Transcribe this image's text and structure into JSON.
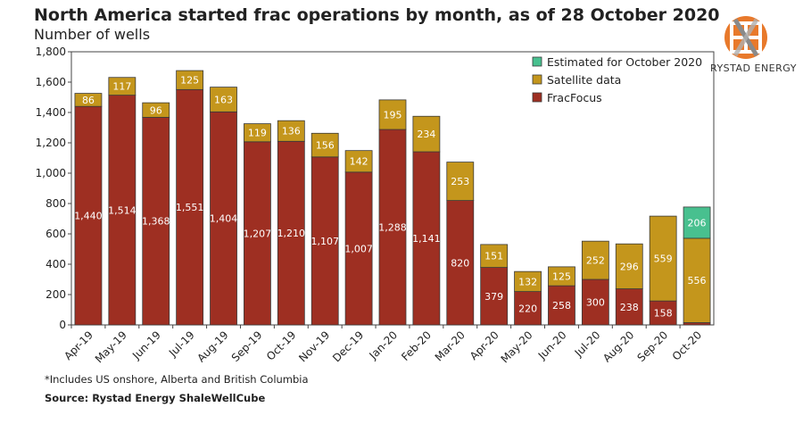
{
  "chart_data": {
    "type": "bar",
    "stacked": true,
    "title": "North America started frac operations by month, as of 28 October 2020",
    "subtitle": "Number of wells",
    "xlabel": "",
    "ylabel": "Number of wells",
    "ylim": [
      0,
      1800
    ],
    "yticks": [
      0,
      200,
      400,
      600,
      800,
      1000,
      1200,
      1400,
      1600,
      1800
    ],
    "ytick_labels": [
      "0",
      "200",
      "400",
      "600",
      "800",
      "1,000",
      "1,200",
      "1,400",
      "1,600",
      "1,800"
    ],
    "grid": false,
    "legend_position": "top-right",
    "categories": [
      "Apr-19",
      "May-19",
      "Jun-19",
      "Jul-19",
      "Aug-19",
      "Sep-19",
      "Oct-19",
      "Nov-19",
      "Dec-19",
      "Jan-20",
      "Feb-20",
      "Mar-20",
      "Apr-20",
      "May-20",
      "Jun-20",
      "Jul-20",
      "Aug-20",
      "Sep-20",
      "Oct-20"
    ],
    "series": [
      {
        "name": "FracFocus",
        "color": "#9e2f22",
        "values": [
          1440,
          1514,
          1368,
          1551,
          1404,
          1207,
          1210,
          1107,
          1007,
          1288,
          1141,
          820,
          379,
          220,
          258,
          300,
          238,
          158,
          15
        ],
        "labels": [
          "1,440",
          "1,514",
          "1,368",
          "1,551",
          "1,404",
          "1,207",
          "1,210",
          "1,107",
          "1,007",
          "1,288",
          "1,141",
          "820",
          "379",
          "220",
          "258",
          "300",
          "238",
          "158",
          ""
        ]
      },
      {
        "name": "Satellite data",
        "color": "#c4961c",
        "values": [
          86,
          117,
          96,
          125,
          163,
          119,
          136,
          156,
          142,
          195,
          234,
          253,
          151,
          132,
          125,
          252,
          296,
          559,
          556
        ],
        "labels": [
          "86",
          "117",
          "96",
          "125",
          "163",
          "119",
          "136",
          "156",
          "142",
          "195",
          "234",
          "253",
          "151",
          "132",
          "125",
          "252",
          "296",
          "559",
          "556"
        ]
      },
      {
        "name": "Estimated for October 2020",
        "color": "#48c08f",
        "values": [
          0,
          0,
          0,
          0,
          0,
          0,
          0,
          0,
          0,
          0,
          0,
          0,
          0,
          0,
          0,
          0,
          0,
          0,
          206
        ],
        "labels": [
          "",
          "",
          "",
          "",
          "",
          "",
          "",
          "",
          "",
          "",
          "",
          "",
          "",
          "",
          "",
          "",
          "",
          "",
          "206"
        ]
      }
    ],
    "legend_order": [
      "Estimated for October 2020",
      "Satellite data",
      "FracFocus"
    ]
  },
  "footnote": "*Includes US onshore, Alberta and British Columbia",
  "source": "Source: Rystad Energy ShaleWellCube",
  "brand": {
    "name": "RYSTAD ENERGY",
    "icon": "rystad-logo-icon",
    "colors": [
      "#e8792b",
      "#8a8a8a"
    ]
  }
}
